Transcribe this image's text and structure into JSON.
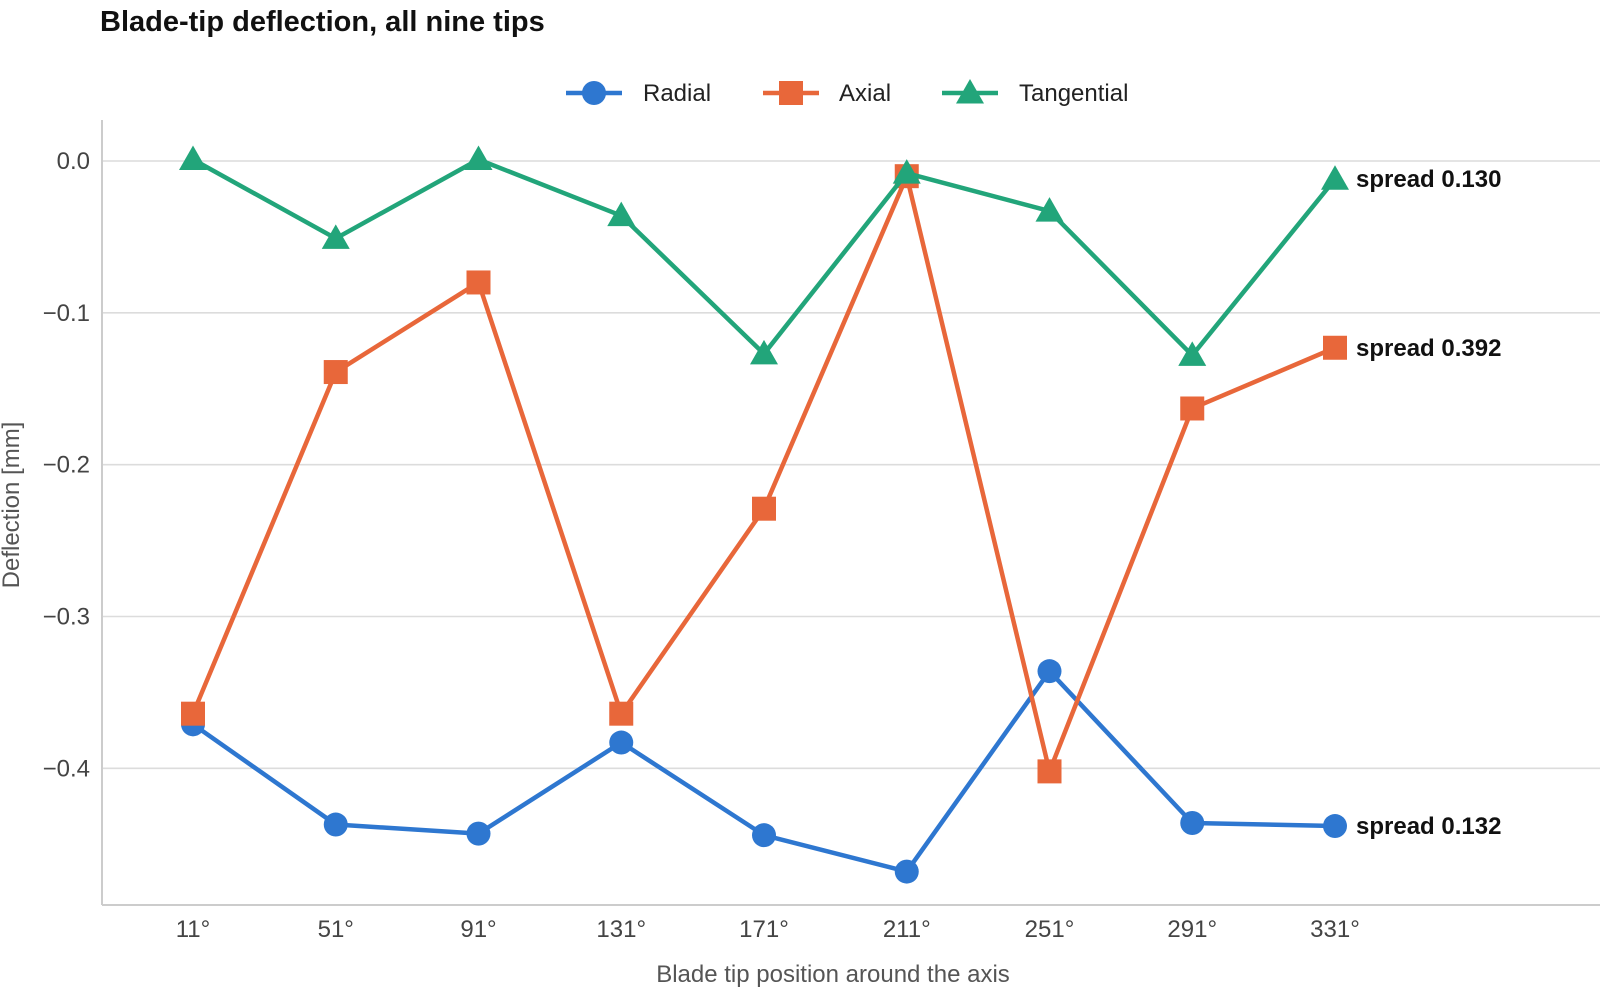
{
  "chart_data": {
    "type": "line",
    "title": "Blade-tip deflection, all nine tips",
    "xlabel": "Blade tip position around the axis",
    "ylabel": "Deflection  [mm]",
    "categories": [
      "11°",
      "51°",
      "91°",
      "131°",
      "171°",
      "211°",
      "251°",
      "291°",
      "331°"
    ],
    "ylim": [
      -0.49,
      0.027
    ],
    "yticks": [
      0.0,
      -0.1,
      -0.2,
      -0.3,
      -0.4
    ],
    "ytick_labels": [
      "0.0",
      "−0.1",
      "−0.2",
      "−0.3",
      "−0.4"
    ],
    "grid": true,
    "legend": "top-center",
    "series": [
      {
        "name": "Radial",
        "color": "#2e77d0",
        "marker": "circle",
        "values": [
          -0.371,
          -0.437,
          -0.443,
          -0.383,
          -0.444,
          -0.468,
          -0.336,
          -0.436,
          -0.438
        ],
        "end_label": "spread 0.132"
      },
      {
        "name": "Axial",
        "color": "#e8673a",
        "marker": "square",
        "values": [
          -0.364,
          -0.139,
          -0.08,
          -0.364,
          -0.229,
          -0.01,
          -0.402,
          -0.163,
          -0.123
        ],
        "end_label": "spread 0.392"
      },
      {
        "name": "Tangential",
        "color": "#22a57a",
        "marker": "triangle",
        "values": [
          0.001,
          -0.051,
          0.001,
          -0.036,
          -0.127,
          -0.008,
          -0.033,
          -0.128,
          -0.012
        ],
        "end_label": "spread 0.130"
      }
    ]
  }
}
